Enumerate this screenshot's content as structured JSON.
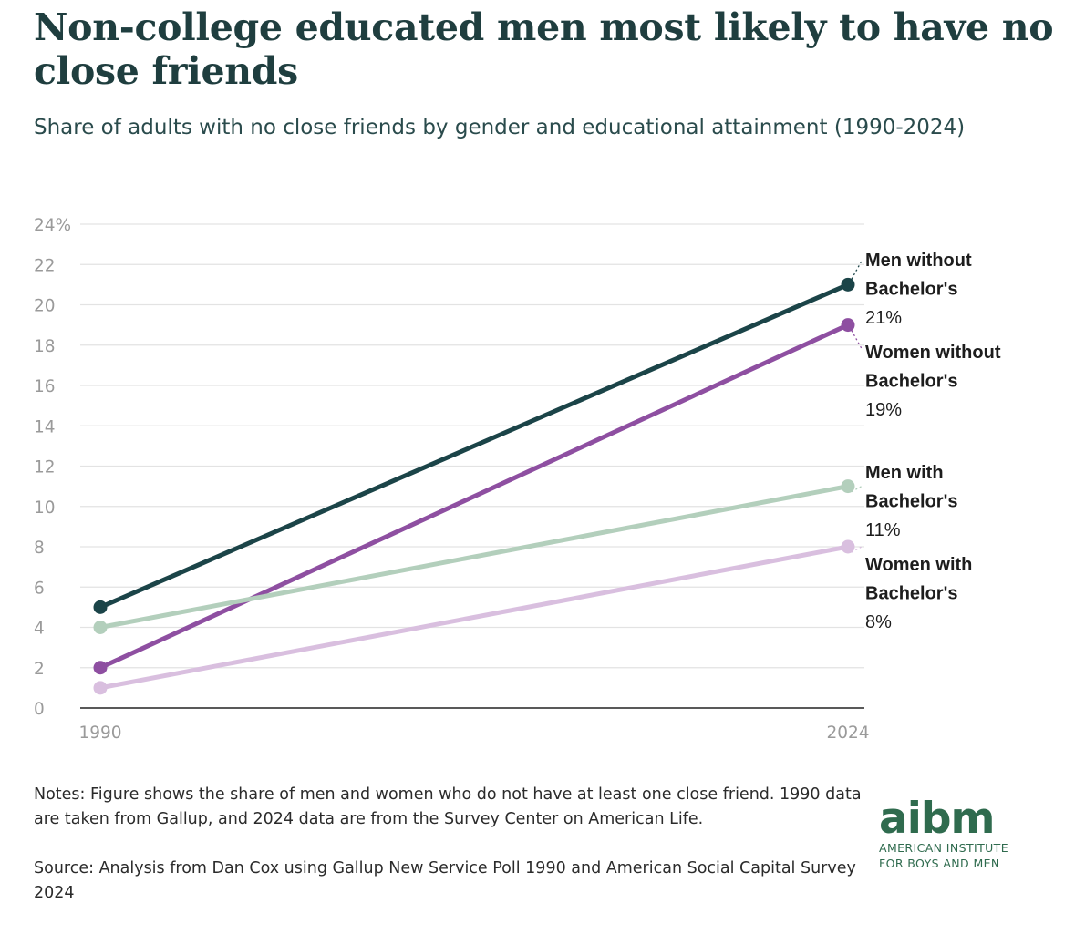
{
  "chart_data": {
    "type": "line",
    "title": "Non-college educated men most likely to have no close friends",
    "subtitle": "Share of adults with no close friends by gender and educational attainment (1990-2024)",
    "x": [
      "1990",
      "2024"
    ],
    "ylim": [
      0,
      24
    ],
    "yticks": [
      "0",
      "2",
      "4",
      "6",
      "8",
      "10",
      "12",
      "14",
      "16",
      "18",
      "20",
      "22",
      "24%"
    ],
    "grid": true,
    "series": [
      {
        "name": "Men without Bachelor's",
        "label_lines": [
          "Men without",
          "Bachelor's"
        ],
        "value_label": "21%",
        "values": [
          5,
          21
        ],
        "color": "#1b4448"
      },
      {
        "name": "Women without Bachelor's",
        "label_lines": [
          "Women without",
          "Bachelor's"
        ],
        "value_label": "19%",
        "values": [
          2,
          19
        ],
        "color": "#8e4fa1"
      },
      {
        "name": "Men with Bachelor's",
        "label_lines": [
          "Men with",
          "Bachelor's"
        ],
        "value_label": "11%",
        "values": [
          4,
          11
        ],
        "color": "#b3cfbc"
      },
      {
        "name": "Women with Bachelor's",
        "label_lines": [
          "Women with",
          "Bachelor's"
        ],
        "value_label": "8%",
        "values": [
          1,
          8
        ],
        "color": "#d9bfdf"
      }
    ]
  },
  "notes": "Notes: Figure shows the share of men and women who do not have at least one close friend. 1990 data are taken from Gallup, and 2024 data are from the Survey Center on American Life.",
  "source": "Source: Analysis from Dan Cox using Gallup New Service Poll 1990 and American Social Capital Survey 2024",
  "logo": {
    "mark": "aibm",
    "line1": "AMERICAN INSTITUTE",
    "line2": "FOR BOYS AND MEN"
  }
}
